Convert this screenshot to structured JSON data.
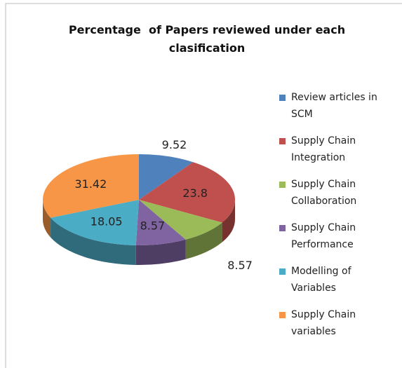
{
  "chart_data": {
    "type": "pie3d",
    "title": "Percentage  of Papers reviewed under each clasification",
    "categories": [
      "Review articles in SCM",
      "Supply Chain Integration",
      "Supply Chain Collaboration",
      "Supply Chain Performance",
      "Modelling of Variables",
      "Supply Chain variables"
    ],
    "values": [
      9.52,
      23.8,
      8.57,
      8.57,
      18.05,
      31.42
    ],
    "colors": [
      "#4f81bd",
      "#c0504d",
      "#9bbb59",
      "#8064a2",
      "#4bacc6",
      "#f79646"
    ],
    "legend": "right"
  }
}
